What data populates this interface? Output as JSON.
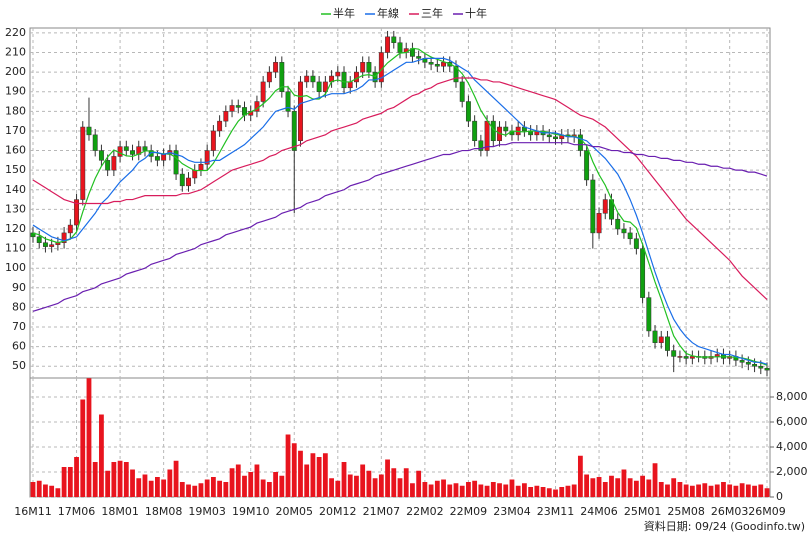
{
  "chart_data": {
    "type": "candlestick",
    "categories": [
      "16M11",
      null,
      null,
      null,
      null,
      null,
      null,
      "17M06",
      null,
      null,
      null,
      null,
      null,
      null,
      "18M01",
      null,
      null,
      null,
      null,
      null,
      null,
      "18M08",
      null,
      null,
      null,
      null,
      null,
      null,
      "19M03",
      null,
      null,
      null,
      null,
      null,
      null,
      "19M10",
      null,
      null,
      null,
      null,
      null,
      null,
      "20M05",
      null,
      null,
      null,
      null,
      null,
      null,
      "20M12",
      null,
      null,
      null,
      null,
      null,
      null,
      "21M07",
      null,
      null,
      null,
      null,
      null,
      null,
      "22M02",
      null,
      null,
      null,
      null,
      null,
      null,
      "22M09",
      null,
      null,
      null,
      null,
      null,
      null,
      "23M04",
      null,
      null,
      null,
      null,
      null,
      null,
      "23M11",
      null,
      null,
      null,
      null,
      null,
      null,
      "24M06",
      null,
      null,
      null,
      null,
      null,
      null,
      "25M01",
      null,
      null,
      null,
      null,
      null,
      null,
      "25M08",
      null,
      null,
      null,
      null,
      null,
      null,
      "26M03",
      null,
      null,
      null,
      null,
      null,
      "26M09"
    ],
    "open": [
      118,
      116,
      113,
      111,
      112,
      113,
      118,
      122,
      135,
      172,
      168,
      160,
      155,
      150,
      157,
      162,
      160,
      158,
      162,
      160,
      157,
      155,
      158,
      160,
      148,
      142,
      146,
      150,
      153,
      160,
      170,
      175,
      180,
      183,
      182,
      178,
      180,
      185,
      195,
      200,
      205,
      190,
      180,
      165,
      195,
      198,
      195,
      190,
      195,
      198,
      200,
      192,
      195,
      200,
      205,
      200,
      195,
      210,
      218,
      215,
      210,
      212,
      208,
      207,
      205,
      204,
      203,
      205,
      203,
      195,
      185,
      175,
      165,
      160,
      175,
      165,
      172,
      170,
      168,
      172,
      170,
      168,
      170,
      168,
      167,
      166,
      168,
      167,
      168,
      160,
      145,
      118,
      128,
      135,
      125,
      120,
      118,
      115,
      110,
      85,
      68,
      62,
      65,
      58,
      55,
      55,
      54,
      55,
      55,
      54,
      55,
      56,
      54,
      55,
      53,
      52,
      51,
      50,
      49
    ],
    "high": [
      121,
      119,
      116,
      115,
      116,
      121,
      125,
      138,
      175,
      187,
      171,
      163,
      158,
      160,
      165,
      165,
      163,
      165,
      165,
      163,
      160,
      161,
      163,
      163,
      151,
      149,
      153,
      156,
      163,
      173,
      178,
      183,
      186,
      186,
      185,
      183,
      188,
      198,
      203,
      208,
      208,
      193,
      183,
      198,
      201,
      201,
      198,
      198,
      201,
      203,
      203,
      198,
      203,
      208,
      208,
      203,
      213,
      221,
      221,
      218,
      215,
      215,
      211,
      210,
      208,
      207,
      208,
      208,
      206,
      198,
      188,
      178,
      168,
      178,
      178,
      175,
      175,
      173,
      175,
      175,
      173,
      173,
      173,
      171,
      170,
      171,
      171,
      171,
      171,
      163,
      148,
      131,
      138,
      138,
      128,
      123,
      121,
      118,
      113,
      88,
      71,
      68,
      68,
      61,
      58,
      58,
      58,
      58,
      58,
      58,
      59,
      59,
      58,
      58,
      56,
      55,
      54,
      53,
      52
    ],
    "low": [
      113,
      110,
      108,
      108,
      109,
      110,
      115,
      119,
      132,
      165,
      157,
      152,
      147,
      147,
      154,
      157,
      155,
      155,
      157,
      154,
      152,
      152,
      155,
      145,
      139,
      139,
      143,
      147,
      150,
      157,
      167,
      172,
      177,
      179,
      175,
      175,
      177,
      182,
      192,
      197,
      187,
      177,
      128,
      162,
      192,
      192,
      187,
      187,
      192,
      195,
      189,
      189,
      192,
      197,
      197,
      192,
      192,
      207,
      212,
      207,
      207,
      205,
      204,
      202,
      201,
      200,
      200,
      200,
      192,
      182,
      172,
      162,
      157,
      157,
      162,
      162,
      167,
      165,
      165,
      167,
      165,
      165,
      165,
      164,
      163,
      163,
      164,
      164,
      157,
      142,
      110,
      115,
      125,
      122,
      117,
      115,
      112,
      107,
      82,
      65,
      59,
      59,
      55,
      47,
      52,
      51,
      51,
      52,
      51,
      51,
      52,
      51,
      51,
      50,
      49,
      48,
      47,
      46,
      45
    ],
    "close": [
      116,
      113,
      111,
      112,
      113,
      118,
      122,
      135,
      172,
      168,
      160,
      155,
      150,
      157,
      162,
      160,
      158,
      162,
      160,
      157,
      155,
      158,
      160,
      148,
      142,
      146,
      150,
      153,
      160,
      170,
      175,
      180,
      183,
      182,
      178,
      180,
      185,
      195,
      200,
      205,
      190,
      180,
      160,
      195,
      198,
      195,
      190,
      195,
      198,
      200,
      192,
      195,
      200,
      205,
      200,
      195,
      210,
      218,
      215,
      210,
      212,
      208,
      207,
      205,
      204,
      203,
      205,
      203,
      195,
      185,
      175,
      165,
      160,
      175,
      165,
      172,
      170,
      168,
      172,
      170,
      168,
      170,
      168,
      167,
      166,
      168,
      167,
      168,
      160,
      145,
      118,
      128,
      135,
      125,
      120,
      118,
      115,
      110,
      85,
      68,
      62,
      65,
      58,
      55,
      55,
      54,
      55,
      55,
      54,
      55,
      56,
      54,
      55,
      53,
      52,
      51,
      50,
      49,
      48
    ],
    "volume": [
      1200,
      1300,
      1000,
      900,
      700,
      2400,
      2400,
      3200,
      7800,
      9500,
      2800,
      6600,
      2100,
      2800,
      2900,
      2800,
      2200,
      1500,
      1800,
      1300,
      1600,
      1400,
      2200,
      2900,
      1200,
      1000,
      900,
      1100,
      1400,
      1600,
      1300,
      1200,
      2300,
      2600,
      1700,
      2000,
      2600,
      1400,
      1200,
      2000,
      1700,
      5000,
      4300,
      3700,
      2600,
      3500,
      3200,
      3500,
      1500,
      1300,
      2800,
      1800,
      1700,
      2600,
      2100,
      1500,
      1800,
      3000,
      2300,
      1500,
      2300,
      1100,
      2100,
      1200,
      1000,
      1300,
      1400,
      1000,
      1100,
      900,
      1200,
      1300,
      1000,
      900,
      1200,
      1100,
      1000,
      1400,
      900,
      1100,
      800,
      900,
      800,
      700,
      600,
      800,
      900,
      1000,
      3300,
      1800,
      1500,
      1600,
      1200,
      1700,
      1500,
      2200,
      1500,
      1300,
      1700,
      1400,
      2700,
      1200,
      1000,
      1500,
      1200,
      1000,
      900,
      1000,
      1100,
      900,
      1000,
      1200,
      1000,
      900,
      1100,
      1000,
      900,
      1000,
      700
    ],
    "up_color": "#e8141e",
    "down_color": "#10a010",
    "volume_color": "#e8141e",
    "series": [
      {
        "name": "半年",
        "color": "#22c022",
        "values": [
          118,
          117,
          115,
          114,
          113,
          113.8,
          114.8,
          118.5,
          128.7,
          138,
          145.8,
          152,
          156.7,
          160.3,
          158.7,
          157.3,
          157,
          158.2,
          159.8,
          159.8,
          158.7,
          158.3,
          158.3,
          156.3,
          153.3,
          151.5,
          149.8,
          149.8,
          149.8,
          153.5,
          159,
          164.7,
          170.2,
          175,
          178,
          179.7,
          181.3,
          183.8,
          186.7,
          190.5,
          192.5,
          192.5,
          188.3,
          187.5,
          188,
          186.3,
          186.3,
          188.8,
          195.2,
          196,
          195,
          195,
          196.7,
          198.3,
          198.7,
          197.8,
          201.2,
          204.7,
          207.2,
          209.7,
          210,
          212.2,
          211.7,
          209.5,
          207.7,
          206.5,
          205.3,
          204.3,
          202.5,
          199.2,
          194.3,
          187.7,
          180.5,
          175.5,
          170.8,
          168.7,
          167.8,
          170,
          169.7,
          169.5,
          170,
          169.8,
          169.7,
          169.2,
          168.2,
          167.8,
          167.3,
          167.3,
          166,
          162.5,
          154.3,
          147.7,
          142.3,
          135.2,
          128.5,
          124,
          123.5,
          120.5,
          112.2,
          102.7,
          93,
          84.2,
          74.7,
          65.5,
          60.5,
          56.5,
          55.3,
          54.7,
          54.7,
          54.7,
          54.8,
          54.8,
          54.8,
          54.5,
          54.2,
          53.5,
          52.5,
          51.7,
          50.5
        ]
      },
      {
        "name": "年線",
        "color": "#1a6ee8",
        "values": [
          122,
          120,
          118,
          116,
          115,
          114,
          115,
          116,
          120,
          124,
          128,
          133,
          136,
          140,
          144,
          147,
          150,
          154,
          156,
          159,
          159,
          158,
          159,
          158,
          157,
          155,
          154,
          154,
          154,
          155,
          155,
          157,
          159,
          161,
          163,
          166,
          169,
          172,
          176,
          180,
          181,
          182,
          181,
          184,
          185,
          186,
          187,
          188,
          189,
          189,
          189,
          190,
          191,
          193,
          196,
          196,
          197,
          199,
          201,
          203,
          205,
          205,
          206,
          207,
          207,
          207,
          207,
          206,
          204,
          202,
          200,
          196,
          193,
          190,
          187,
          184,
          181,
          178,
          175,
          172,
          171,
          170,
          169,
          169,
          169,
          168,
          167,
          167,
          166,
          165,
          162,
          159,
          156,
          152,
          148,
          142,
          135,
          127,
          118,
          108,
          98,
          89,
          81,
          74,
          69,
          65,
          62,
          60,
          59,
          58,
          57,
          56,
          56,
          55,
          54,
          53,
          52,
          52,
          51
        ]
      },
      {
        "name": "三年",
        "color": "#d81c5c",
        "values": [
          145,
          143,
          141,
          139,
          137,
          135,
          134,
          133,
          133,
          133,
          133,
          133,
          133,
          134,
          134,
          135,
          135,
          136,
          137,
          137,
          137,
          137,
          137,
          137,
          138,
          138,
          139,
          140,
          142,
          144,
          146,
          148,
          150,
          151,
          152,
          153,
          154,
          155,
          157,
          158,
          160,
          161,
          162,
          163,
          165,
          166,
          167,
          168,
          170,
          171,
          172,
          173,
          174,
          176,
          177,
          178,
          179,
          181,
          182,
          184,
          186,
          188,
          189,
          191,
          192,
          194,
          195,
          196,
          197,
          197,
          197,
          197,
          196,
          196,
          195,
          195,
          194,
          193,
          192,
          191,
          190,
          189,
          188,
          187,
          186,
          184,
          182,
          180,
          178,
          177,
          176,
          174,
          172,
          169,
          166,
          163,
          160,
          157,
          153,
          149,
          145,
          141,
          137,
          133,
          129,
          125,
          122,
          119,
          116,
          113,
          110,
          107,
          104,
          100,
          96,
          93,
          90,
          87,
          84
        ]
      },
      {
        "name": "十年",
        "color": "#6a1fb0",
        "values": [
          78,
          79,
          80,
          81,
          82,
          84,
          85,
          86,
          88,
          89,
          90,
          92,
          93,
          94,
          95,
          97,
          98,
          99,
          100,
          102,
          103,
          104,
          105,
          107,
          108,
          109,
          110,
          112,
          113,
          114,
          115,
          117,
          118,
          119,
          120,
          121,
          123,
          124,
          125,
          126,
          128,
          129,
          130,
          131,
          133,
          134,
          135,
          137,
          138,
          139,
          140,
          142,
          143,
          144,
          145,
          147,
          148,
          149,
          150,
          151,
          152,
          153,
          154,
          155,
          156,
          157,
          158,
          158,
          159,
          160,
          160,
          161,
          161,
          162,
          162,
          163,
          163,
          164,
          164,
          164,
          164,
          164,
          164,
          164,
          164,
          164,
          164,
          163,
          163,
          163,
          162,
          162,
          161,
          160,
          160,
          159,
          159,
          158,
          158,
          157,
          157,
          156,
          156,
          155,
          155,
          154,
          154,
          153,
          153,
          152,
          152,
          151,
          151,
          150,
          150,
          149,
          149,
          148,
          147
        ]
      }
    ],
    "ylim": [
      44,
      222.5
    ],
    "yticks": [
      50,
      60,
      70,
      80,
      90,
      100,
      110,
      120,
      130,
      140,
      150,
      160,
      170,
      180,
      190,
      200,
      210,
      220
    ],
    "volume_ylim": [
      0,
      9520
    ],
    "volume_ticks": [
      0,
      {
        "value": 2000,
        "label": "2,000"
      },
      {
        "value": 4000,
        "label": "4,000"
      },
      {
        "value": 6000,
        "label": "6,000"
      },
      {
        "value": 8000,
        "label": "8,000"
      }
    ],
    "grid": true,
    "footnote": "資料日期: 09/24 (Goodinfo.tw)"
  }
}
